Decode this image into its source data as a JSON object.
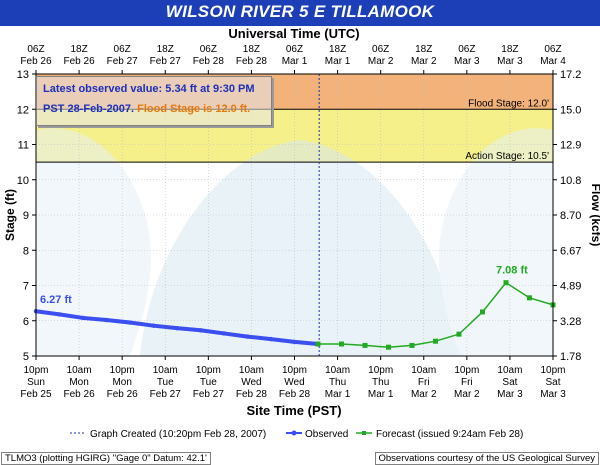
{
  "title": "WILSON RIVER 5 E TILLAMOOK",
  "top_axis_title": "Universal Time (UTC)",
  "bottom_axis_title": "Site Time (PST)",
  "info": {
    "line1": "Latest observed value: 5.34 ft at 9:30 PM",
    "line2_prefix": "PST 28-Feb-2007.",
    "line2_flood": "Flood Stage is 12.0 ft."
  },
  "footer": {
    "left": "TLMO3 (plotting HGIRG)  \"Gage 0\" Datum: 42.1'",
    "right": "Observations courtesy of the  US Geological Survey"
  },
  "chart_data": {
    "type": "line",
    "title": "WILSON RIVER 5 E TILLAMOOK",
    "xlabel": "Site Time (PST)",
    "ylabel": "Stage (ft)",
    "y2label": "Flow (kcfs)",
    "ylim": [
      5,
      13
    ],
    "y_ticks": [
      5,
      6,
      7,
      8,
      9,
      10,
      11,
      12,
      13
    ],
    "y2_ticks": [
      "1.78",
      "3.28",
      "4.89",
      "6.67",
      "8.70",
      "10.8",
      "12.9",
      "15.0",
      "17.2"
    ],
    "x_range_hours": [
      0,
      132
    ],
    "x_tick_labels_pst": [
      [
        "10pm",
        "Sun",
        "Feb 25"
      ],
      [
        "10am",
        "Mon",
        "Feb 26"
      ],
      [
        "10pm",
        "Mon",
        "Feb 26"
      ],
      [
        "10am",
        "Tue",
        "Feb 27"
      ],
      [
        "10pm",
        "Tue",
        "Feb 27"
      ],
      [
        "10am",
        "Wed",
        "Feb 28"
      ],
      [
        "10pm",
        "Wed",
        "Feb 28"
      ],
      [
        "10am",
        "Thu",
        "Mar 1"
      ],
      [
        "10pm",
        "Thu",
        "Mar 1"
      ],
      [
        "10am",
        "Fri",
        "Mar 2"
      ],
      [
        "10pm",
        "Fri",
        "Mar 2"
      ],
      [
        "10am",
        "Sat",
        "Mar 3"
      ],
      [
        "10pm",
        "Sat",
        "Mar 3"
      ]
    ],
    "x_tick_labels_utc": [
      [
        "06Z",
        "Feb 26"
      ],
      [
        "18Z",
        "Feb 26"
      ],
      [
        "06Z",
        "Feb 27"
      ],
      [
        "18Z",
        "Feb 27"
      ],
      [
        "06Z",
        "Feb 28"
      ],
      [
        "18Z",
        "Feb 28"
      ],
      [
        "06Z",
        "Mar 1"
      ],
      [
        "18Z",
        "Mar 1"
      ],
      [
        "06Z",
        "Mar 2"
      ],
      [
        "18Z",
        "Mar 2"
      ],
      [
        "06Z",
        "Mar 3"
      ],
      [
        "18Z",
        "Mar 3"
      ],
      [
        "06Z",
        "Mar 4"
      ]
    ],
    "bands": [
      {
        "name": "major",
        "from": 12,
        "to": 13,
        "color": "#f2b27a"
      },
      {
        "name": "flood",
        "from": 10.5,
        "to": 12,
        "color": "#f5f08a"
      }
    ],
    "thresholds": [
      {
        "label": "Flood Stage: 12.0'",
        "value": 12.0
      },
      {
        "label": "Action Stage: 10.5'",
        "value": 10.5
      }
    ],
    "graph_created_hour": 72.3,
    "series": [
      {
        "name": "Observed",
        "color": "#3b4ef0",
        "x": [
          0,
          6,
          12,
          18,
          24,
          30,
          36,
          42,
          48,
          54,
          60,
          66,
          72
        ],
        "y": [
          6.27,
          6.18,
          6.08,
          6.02,
          5.95,
          5.86,
          5.79,
          5.73,
          5.64,
          5.55,
          5.48,
          5.4,
          5.34
        ],
        "peak_label": "6.27 ft"
      },
      {
        "name": "Forecast (issued 9:24am Feb 28)",
        "color": "#22aa22",
        "x": [
          72,
          78,
          84,
          90,
          96,
          102,
          108,
          114,
          120,
          126,
          132
        ],
        "y": [
          5.34,
          5.34,
          5.3,
          5.25,
          5.3,
          5.42,
          5.62,
          6.25,
          7.08,
          6.65,
          6.45
        ],
        "peak_label": "7.08 ft",
        "peak_index": 8
      }
    ],
    "legend": {
      "created": "Graph Created (10:20pm Feb 28, 2007)",
      "observed": "Observed",
      "forecast": "Forecast (issued 9:24am Feb 28)"
    }
  }
}
